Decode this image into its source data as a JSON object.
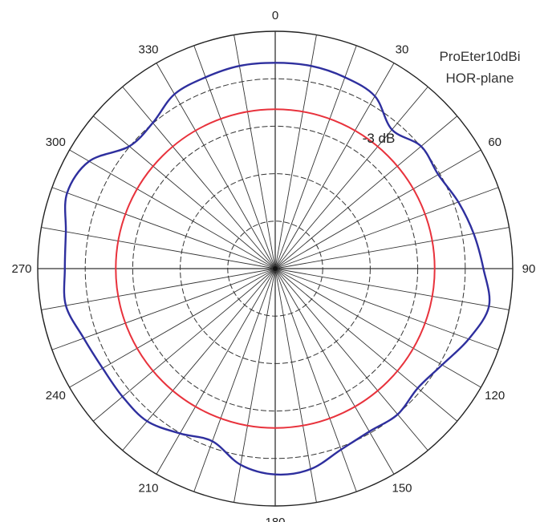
{
  "chart_data": {
    "type": "polar",
    "title_lines": [
      "ProEter10dBi",
      "HOR-plane"
    ],
    "angular_ticks": [
      "0",
      "30",
      "60",
      "90",
      "120",
      "150",
      "180",
      "210",
      "240",
      "270",
      "300",
      "330"
    ],
    "rings": 5,
    "spokes_step_deg": 10,
    "grid": true,
    "reference_label": "-3 dB",
    "reference_level": 0.72,
    "series": [
      {
        "color": "#2e2f9e",
        "angles_deg": [
          0,
          10,
          20,
          30,
          40,
          50,
          60,
          70,
          80,
          90,
          100,
          110,
          120,
          130,
          140,
          150,
          160,
          170,
          180,
          190,
          200,
          210,
          220,
          230,
          240,
          250,
          260,
          270,
          280,
          290,
          300,
          310,
          320,
          330,
          340,
          350
        ],
        "values": [
          0.93,
          0.93,
          0.92,
          0.9,
          0.82,
          0.86,
          0.85,
          0.88,
          0.91,
          0.94,
          0.98,
          0.93,
          0.87,
          0.84,
          0.86,
          0.85,
          0.87,
          0.92,
          0.93,
          0.9,
          0.83,
          0.86,
          0.9,
          0.9,
          0.9,
          0.92,
          0.96,
          0.95,
          0.96,
          1.0,
          0.97,
          0.86,
          0.86,
          0.91,
          0.92,
          0.93
        ]
      }
    ]
  }
}
